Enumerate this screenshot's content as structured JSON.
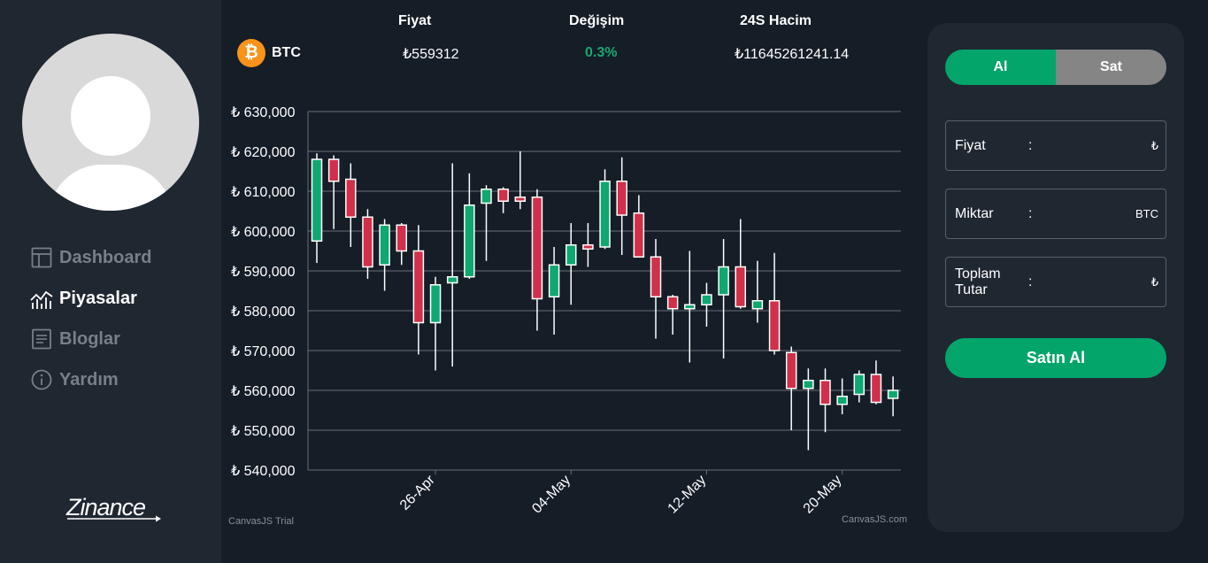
{
  "nav": [
    {
      "label": "Dashboard",
      "icon": "dashboard-icon",
      "active": false
    },
    {
      "label": "Piyasalar",
      "icon": "chart-line-icon",
      "active": true
    },
    {
      "label": "Bloglar",
      "icon": "document-icon",
      "active": false
    },
    {
      "label": "Yardım",
      "icon": "info-icon",
      "active": false
    }
  ],
  "logo": "Zinance",
  "header": {
    "col_price": "Fiyat",
    "col_change": "Değişim",
    "col_volume": "24S Hacim",
    "coin_symbol": "₿",
    "coin_name": "BTC",
    "price": "₺559312",
    "change": "0.3%",
    "volume": "₺11645261241.14"
  },
  "chart_data": {
    "type": "candlestick",
    "y_axis_ticks": [
      "₺ 630,000",
      "₺ 620,000",
      "₺ 610,000",
      "₺ 600,000",
      "₺ 590,000",
      "₺ 580,000",
      "₺ 570,000",
      "₺ 560,000",
      "₺ 550,000",
      "₺ 540,000"
    ],
    "ylim": [
      540000,
      630000
    ],
    "x_axis_ticks": [
      {
        "label": "26-Apr",
        "index": 7
      },
      {
        "label": "04-May",
        "index": 15
      },
      {
        "label": "12-May",
        "index": 23
      },
      {
        "label": "20-May",
        "index": 31
      }
    ],
    "grid": true,
    "up_color": "#0ea870",
    "down_color": "#d0304a",
    "watermark_left": "CanvasJS Trial",
    "watermark_right": "CanvasJS.com",
    "candles": [
      {
        "o": 597500,
        "h": 619500,
        "l": 592000,
        "c": 618000
      },
      {
        "o": 618000,
        "h": 619000,
        "l": 600500,
        "c": 612500
      },
      {
        "o": 613000,
        "h": 617000,
        "l": 596000,
        "c": 603500
      },
      {
        "o": 603500,
        "h": 605500,
        "l": 588000,
        "c": 591000
      },
      {
        "o": 591500,
        "h": 603000,
        "l": 585000,
        "c": 601500
      },
      {
        "o": 601500,
        "h": 602000,
        "l": 591500,
        "c": 595000
      },
      {
        "o": 595000,
        "h": 601500,
        "l": 569000,
        "c": 577000
      },
      {
        "o": 577000,
        "h": 588500,
        "l": 565000,
        "c": 586500
      },
      {
        "o": 587000,
        "h": 617000,
        "l": 566000,
        "c": 588500
      },
      {
        "o": 588500,
        "h": 614500,
        "l": 588000,
        "c": 606500
      },
      {
        "o": 607000,
        "h": 611500,
        "l": 592500,
        "c": 610500
      },
      {
        "o": 610500,
        "h": 611000,
        "l": 604500,
        "c": 607500
      },
      {
        "o": 608500,
        "h": 620000,
        "l": 605500,
        "c": 607500
      },
      {
        "o": 608500,
        "h": 610500,
        "l": 575000,
        "c": 583000
      },
      {
        "o": 583500,
        "h": 596000,
        "l": 574000,
        "c": 591500
      },
      {
        "o": 591500,
        "h": 602000,
        "l": 581500,
        "c": 596500
      },
      {
        "o": 596500,
        "h": 602000,
        "l": 591000,
        "c": 595500
      },
      {
        "o": 596000,
        "h": 615500,
        "l": 595500,
        "c": 612500
      },
      {
        "o": 612500,
        "h": 618500,
        "l": 594000,
        "c": 604000
      },
      {
        "o": 604500,
        "h": 609000,
        "l": 594000,
        "c": 593500
      },
      {
        "o": 593500,
        "h": 598000,
        "l": 573000,
        "c": 583500
      },
      {
        "o": 583500,
        "h": 584000,
        "l": 574000,
        "c": 580500
      },
      {
        "o": 580500,
        "h": 595000,
        "l": 567000,
        "c": 581500
      },
      {
        "o": 581500,
        "h": 587000,
        "l": 576000,
        "c": 584000
      },
      {
        "o": 584000,
        "h": 598000,
        "l": 568000,
        "c": 591000
      },
      {
        "o": 591000,
        "h": 603000,
        "l": 580500,
        "c": 581000
      },
      {
        "o": 580500,
        "h": 592500,
        "l": 577000,
        "c": 582500
      },
      {
        "o": 582500,
        "h": 594500,
        "l": 569000,
        "c": 570000
      },
      {
        "o": 569500,
        "h": 571000,
        "l": 550000,
        "c": 560500
      },
      {
        "o": 560500,
        "h": 565500,
        "l": 545000,
        "c": 562500
      },
      {
        "o": 562500,
        "h": 565500,
        "l": 549500,
        "c": 556500
      },
      {
        "o": 556500,
        "h": 563000,
        "l": 554000,
        "c": 558500
      },
      {
        "o": 559000,
        "h": 565000,
        "l": 557000,
        "c": 564000
      },
      {
        "o": 564000,
        "h": 567500,
        "l": 556500,
        "c": 557000
      },
      {
        "o": 558000,
        "h": 563500,
        "l": 553500,
        "c": 560000
      }
    ]
  },
  "panel": {
    "tab_buy": "Al",
    "tab_sell": "Sat",
    "field_price_label": "Fiyat",
    "field_price_unit": "₺",
    "field_amount_label": "Miktar",
    "field_amount_unit": "BTC",
    "field_total_label_1": "Toplam",
    "field_total_label_2": "Tutar",
    "field_total_unit": "₺",
    "colon": ":",
    "buy_button": "Satın Al"
  }
}
